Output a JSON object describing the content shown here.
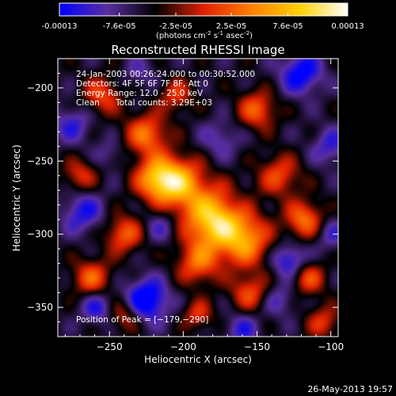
{
  "colorbar": {
    "tick_labels": [
      "-0.00013",
      "-7.6e-05",
      "-2.5e-05",
      "2.5e-05",
      "7.6e-05",
      "0.00013"
    ],
    "tick_values": [
      -0.00013,
      -7.6e-05,
      -2.5e-05,
      2.5e-05,
      7.6e-05,
      0.00013
    ],
    "range": [
      -0.00013,
      0.00013
    ],
    "units_prefix": "(photons cm",
    "units_sup1": "-2",
    "units_mid": " s",
    "units_sup2": "-1",
    "units_mid2": " asec",
    "units_sup3": "-2",
    "units_suffix": ")"
  },
  "chart_data": {
    "type": "heatmap",
    "title": "Reconstructed RHESSI Image",
    "xlabel": "Heliocentric X (arcsec)",
    "ylabel": "Heliocentric Y (arcsec)",
    "xlim": [
      -285,
      -95
    ],
    "ylim": [
      -370,
      -180
    ],
    "x_ticks": [
      -250,
      -200,
      -150,
      -100
    ],
    "x_tick_labels": [
      "−250",
      "−200",
      "−150",
      "−100"
    ],
    "y_ticks": [
      -200,
      -250,
      -300,
      -350
    ],
    "y_tick_labels": [
      "−200",
      "−250",
      "−300",
      "−350"
    ],
    "peak": {
      "x": -179,
      "y": -290
    },
    "colormap": [
      "#0000ff",
      "#5a2e9e",
      "#000000",
      "#e02000",
      "#ff8000",
      "#ffd000",
      "#ffffff"
    ],
    "blobs": [
      {
        "x": -179,
        "y": -290,
        "r": 14,
        "v": 0.00013
      },
      {
        "x": -203,
        "y": -265,
        "r": 12,
        "v": 0.0001
      },
      {
        "x": -218,
        "y": -262,
        "r": 10,
        "v": 9e-05
      },
      {
        "x": -158,
        "y": -305,
        "r": 12,
        "v": 8e-05
      },
      {
        "x": -225,
        "y": -232,
        "r": 10,
        "v": 7e-05
      },
      {
        "x": -190,
        "y": -320,
        "r": 10,
        "v": 6e-05
      },
      {
        "x": -155,
        "y": -340,
        "r": 9,
        "v": 5e-05
      },
      {
        "x": -240,
        "y": -300,
        "r": 9,
        "v": 6e-05
      },
      {
        "x": -262,
        "y": -330,
        "r": 9,
        "v": 6e-05
      },
      {
        "x": -135,
        "y": -260,
        "r": 10,
        "v": 5e-05
      },
      {
        "x": -118,
        "y": -290,
        "r": 9,
        "v": 7e-05
      },
      {
        "x": -150,
        "y": -215,
        "r": 9,
        "v": 6e-05
      },
      {
        "x": -255,
        "y": -205,
        "r": 9,
        "v": 5e-05
      },
      {
        "x": -205,
        "y": -205,
        "r": 8,
        "v": 4e-05
      },
      {
        "x": -115,
        "y": -330,
        "r": 8,
        "v": 5e-05
      },
      {
        "x": -270,
        "y": -260,
        "r": 8,
        "v": 4e-05
      },
      {
        "x": -240,
        "y": -355,
        "r": 8,
        "v": 4e-05
      },
      {
        "x": -190,
        "y": -355,
        "r": 7,
        "v": 4e-05
      },
      {
        "x": -105,
        "y": -360,
        "r": 8,
        "v": 4e-05
      },
      {
        "x": -225,
        "y": -345,
        "r": 10,
        "v": -0.00012
      },
      {
        "x": -268,
        "y": -285,
        "r": 10,
        "v": -8e-05
      },
      {
        "x": -120,
        "y": -190,
        "r": 10,
        "v": -0.0001
      },
      {
        "x": -128,
        "y": -318,
        "r": 8,
        "v": -9e-05
      },
      {
        "x": -258,
        "y": -350,
        "r": 8,
        "v": -8e-05
      },
      {
        "x": -175,
        "y": -235,
        "r": 9,
        "v": -6e-05
      },
      {
        "x": -100,
        "y": -240,
        "r": 9,
        "v": -7e-05
      },
      {
        "x": -275,
        "y": -225,
        "r": 9,
        "v": -7e-05
      },
      {
        "x": -160,
        "y": -365,
        "r": 8,
        "v": -7e-05
      },
      {
        "x": -135,
        "y": -345,
        "r": 8,
        "v": -6e-05
      },
      {
        "x": -215,
        "y": -295,
        "r": 8,
        "v": -6e-05
      },
      {
        "x": -250,
        "y": -245,
        "r": 7,
        "v": -5e-05
      },
      {
        "x": -230,
        "y": -190,
        "r": 8,
        "v": -5e-05
      },
      {
        "x": -165,
        "y": -280,
        "r": 6,
        "v": -4e-05
      },
      {
        "x": -100,
        "y": -300,
        "r": 8,
        "v": -6e-05
      }
    ]
  },
  "annotations": {
    "time": "24-Jan-2003 00:26:24.000 to 00:30:52.000",
    "detectors": "Detectors: 4F 5F 6F 7F 8F, Att 0",
    "energy": "Energy Range: 12.0 - 25.0 keV",
    "clean": "Clean",
    "counts": "Total counts: 3.29E+03",
    "peak": "Position of Peak = [−179,−290]"
  },
  "footer_date": "26-May-2013 19:57"
}
